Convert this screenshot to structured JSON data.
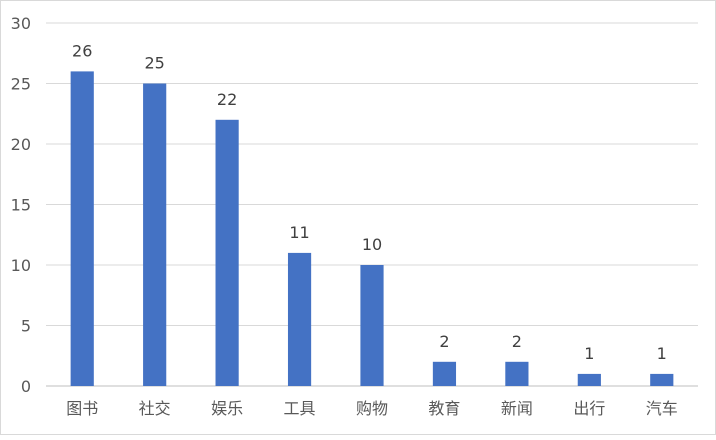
{
  "chart_data": {
    "type": "bar",
    "title": "",
    "xlabel": "",
    "ylabel": "",
    "categories": [
      "图书",
      "社交",
      "娱乐",
      "工具",
      "购物",
      "教育",
      "新闻",
      "出行",
      "汽车"
    ],
    "values": [
      26,
      25,
      22,
      11,
      10,
      2,
      2,
      1,
      1
    ],
    "data_labels": [
      "26",
      "25",
      "22",
      "11",
      "10",
      "2",
      "2",
      "1",
      "1"
    ],
    "ylim": [
      0,
      30
    ],
    "yticks": [
      0,
      5,
      10,
      15,
      20,
      25,
      30
    ],
    "ytick_labels": [
      "0",
      "5",
      "10",
      "15",
      "20",
      "25",
      "30"
    ],
    "grid": true,
    "legend": "none",
    "colors": {
      "bar": "#4472c4",
      "grid": "#d9d9d9",
      "axis": "#bfbfbf"
    }
  }
}
